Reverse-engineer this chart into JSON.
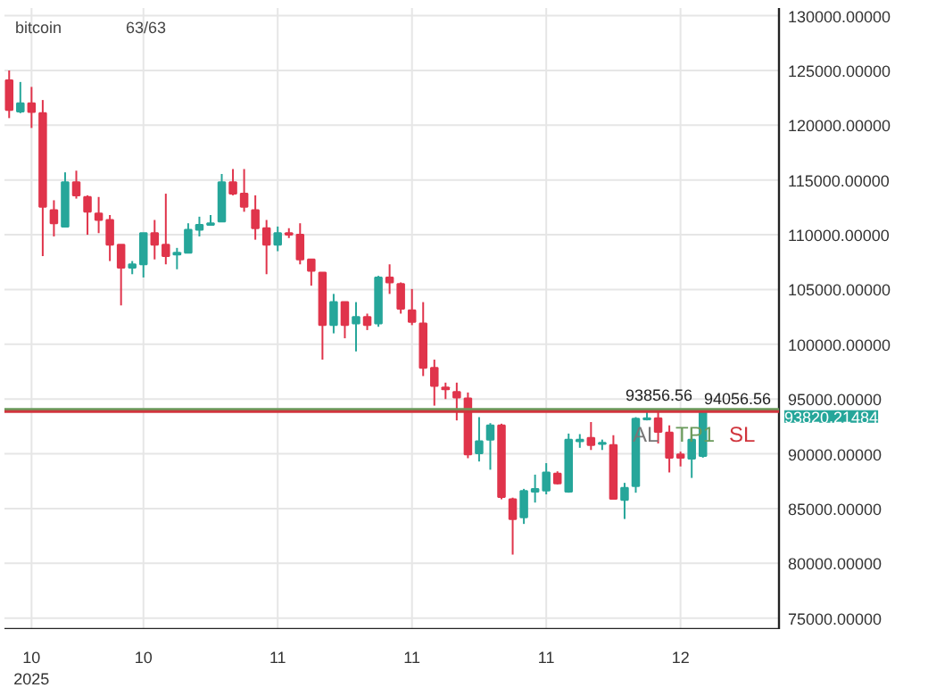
{
  "chart_data": {
    "type": "candlestick",
    "title": "bitcoin",
    "subtitle": "63/63",
    "categories": [
      null,
      null,
      "10\n2025",
      null,
      null,
      null,
      null,
      null,
      null,
      null,
      null,
      null,
      "10",
      null,
      null,
      null,
      null,
      null,
      null,
      null,
      null,
      null,
      null,
      null,
      "11",
      null,
      null,
      null,
      null,
      null,
      null,
      null,
      null,
      null,
      null,
      null,
      "11",
      null,
      null,
      null,
      null,
      null,
      null,
      null,
      null,
      null,
      null,
      null,
      "11",
      null,
      null,
      null,
      null,
      null,
      null,
      null,
      null,
      null,
      null,
      null,
      "12",
      null,
      null
    ],
    "ohlc": [
      [
        124100,
        125000,
        120650,
        121400
      ],
      [
        121250,
        123950,
        121100,
        122000
      ],
      [
        122000,
        123500,
        119750,
        121200
      ],
      [
        121100,
        122300,
        108050,
        112550
      ],
      [
        112250,
        113150,
        109850,
        111050
      ],
      [
        110750,
        115700,
        110750,
        114800
      ],
      [
        114800,
        115850,
        113300,
        113600
      ],
      [
        113450,
        113600,
        110000,
        112100
      ],
      [
        111950,
        113450,
        110150,
        111350
      ],
      [
        111350,
        111800,
        107600,
        109100
      ],
      [
        109100,
        109100,
        103550,
        107000
      ],
      [
        107000,
        107600,
        106400,
        107300
      ],
      [
        107300,
        110150,
        106100,
        110150
      ],
      [
        110150,
        111350,
        107750,
        109100
      ],
      [
        109100,
        113750,
        107300,
        108050
      ],
      [
        108200,
        108800,
        106850,
        108350
      ],
      [
        108350,
        111050,
        108350,
        110450
      ],
      [
        110450,
        111650,
        109850,
        110900
      ],
      [
        110900,
        111800,
        110900,
        111050
      ],
      [
        111200,
        115550,
        111200,
        114800
      ],
      [
        114800,
        116000,
        113600,
        113750
      ],
      [
        113750,
        116000,
        112100,
        112550
      ],
      [
        112250,
        113600,
        109550,
        110600
      ],
      [
        110600,
        111350,
        106400,
        109100
      ],
      [
        109100,
        110750,
        108500,
        110150
      ],
      [
        110150,
        110600,
        109700,
        110000
      ],
      [
        110000,
        111050,
        107300,
        107750
      ],
      [
        107750,
        107750,
        105350,
        106700
      ],
      [
        106550,
        106550,
        98600,
        101750
      ],
      [
        101750,
        104600,
        101000,
        103850
      ],
      [
        103850,
        103850,
        100550,
        101750
      ],
      [
        101900,
        103850,
        99350,
        102500
      ],
      [
        102500,
        102800,
        101300,
        101750
      ],
      [
        101900,
        106250,
        101600,
        106100
      ],
      [
        106100,
        107300,
        104600,
        105650
      ],
      [
        105500,
        105650,
        102800,
        103250
      ],
      [
        103100,
        105050,
        101750,
        102050
      ],
      [
        101900,
        103850,
        97100,
        97850
      ],
      [
        97850,
        98600,
        94400,
        96200
      ],
      [
        96050,
        96500,
        95000,
        95900
      ],
      [
        95650,
        96500,
        93050,
        95150
      ],
      [
        95050,
        95600,
        89600,
        89950
      ],
      [
        90050,
        93350,
        89300,
        91150
      ],
      [
        91300,
        92800,
        88550,
        92600
      ],
      [
        92600,
        92750,
        85850,
        86050
      ],
      [
        85850,
        86000,
        80800,
        84050
      ],
      [
        84200,
        86800,
        83600,
        86600
      ],
      [
        86550,
        88100,
        85550,
        86800
      ],
      [
        86650,
        89150,
        86300,
        88300
      ],
      [
        88200,
        88400,
        87200,
        87300
      ],
      [
        86550,
        91850,
        86450,
        91300
      ],
      [
        91150,
        91800,
        90550,
        91300
      ],
      [
        91450,
        92900,
        90350,
        90800
      ],
      [
        90900,
        91300,
        90350,
        91000
      ],
      [
        90800,
        91700,
        85850,
        85900
      ],
      [
        85800,
        87350,
        84050,
        86900
      ],
      [
        87050,
        93350,
        86450,
        93200
      ],
      [
        93150,
        93950,
        93050,
        93250
      ],
      [
        93250,
        93950,
        90950,
        92000
      ],
      [
        91950,
        92600,
        88300,
        89650
      ],
      [
        89950,
        90200,
        88850,
        89650
      ],
      [
        89550,
        91700,
        87800,
        91300
      ],
      [
        89800,
        93950,
        89650,
        93820.21484
      ]
    ],
    "colors": [
      "#e0344b",
      "#26a69a",
      "#e0344b",
      "#e0344b",
      "#e0344b",
      "#26a69a",
      "#e0344b",
      "#e0344b",
      "#e0344b",
      "#e0344b",
      "#e0344b",
      "#26a69a",
      "#26a69a",
      "#e0344b",
      "#e0344b",
      "#26a69a",
      "#26a69a",
      "#26a69a",
      "#26a69a",
      "#26a69a",
      "#e0344b",
      "#e0344b",
      "#e0344b",
      "#e0344b",
      "#26a69a",
      "#e0344b",
      "#e0344b",
      "#e0344b",
      "#e0344b",
      "#26a69a",
      "#e0344b",
      "#26a69a",
      "#e0344b",
      "#26a69a",
      "#e0344b",
      "#e0344b",
      "#e0344b",
      "#e0344b",
      "#e0344b",
      "#e0344b",
      "#e0344b",
      "#e0344b",
      "#26a69a",
      "#26a69a",
      "#e0344b",
      "#e0344b",
      "#26a69a",
      "#26a69a",
      "#26a69a",
      "#e0344b",
      "#26a69a",
      "#26a69a",
      "#e0344b",
      "#26a69a",
      "#e0344b",
      "#26a69a",
      "#26a69a",
      "#26a69a",
      "#e0344b",
      "#e0344b",
      "#e0344b",
      "#26a69a",
      "#26a69a"
    ],
    "ylim": [
      74000,
      130700
    ],
    "yticks": [
      {
        "value": 75000,
        "label": "75000.00000"
      },
      {
        "value": 80000,
        "label": "80000.00000"
      },
      {
        "value": 85000,
        "label": "85000.00000"
      },
      {
        "value": 90000,
        "label": "90000.00000"
      },
      {
        "value": 95000,
        "label": "95000.00000"
      },
      {
        "value": 100000,
        "label": "100000.00000"
      },
      {
        "value": 105000,
        "label": "105000.00000"
      },
      {
        "value": 110000,
        "label": "110000.00000"
      },
      {
        "value": 115000,
        "label": "115000.00000"
      },
      {
        "value": 120000,
        "label": "120000.00000"
      },
      {
        "value": 125000,
        "label": "125000.00000"
      },
      {
        "value": 130000,
        "label": "130000.00000"
      }
    ],
    "ref_lines": [
      {
        "axis": "y",
        "value": 94056.56,
        "label": "TP1",
        "color": "#6a9a5b"
      },
      {
        "axis": "y",
        "value": 93856.56,
        "label": "SL",
        "color": "#d0343c"
      }
    ],
    "annotations": [
      {
        "text": "94056.56",
        "y": 94056.56
      },
      {
        "text": "93856.56",
        "y": 93856.56
      },
      "AL",
      "93820.21484"
    ],
    "grid": true
  }
}
